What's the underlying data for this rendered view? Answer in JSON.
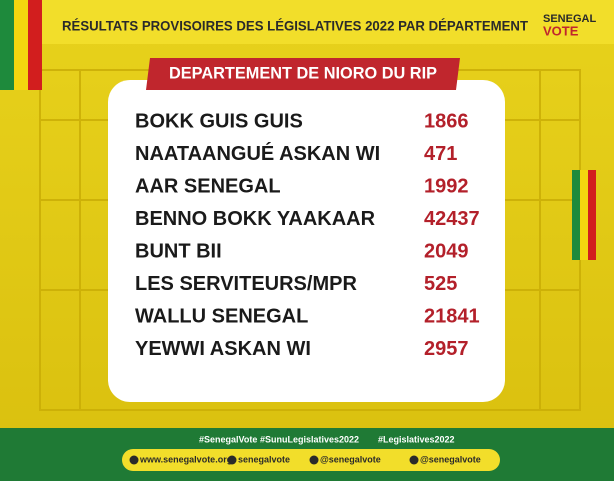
{
  "header": {
    "title": "RÉSULTATS PROVISOIRES DES LÉGISLATIVES 2022 PAR DÉPARTEMENT",
    "logo": [
      "SENEGAL",
      "VOTE"
    ]
  },
  "banner": "DEPARTEMENT DE NIORO DU RIP",
  "table": {
    "rows": [
      [
        "BOKK GUIS GUIS",
        1866
      ],
      [
        "NAATAANGUÉ ASKAN WI",
        471
      ],
      [
        "AAR SENEGAL",
        1992
      ],
      [
        "BENNO BOKK YAAKAAR",
        42437
      ],
      [
        "BUNT BII",
        2049
      ],
      [
        "LES SERVITEURS/MPR",
        525
      ],
      [
        "WALLU SENEGAL",
        21841
      ],
      [
        "YEWWI ASKAN WI",
        2957
      ]
    ]
  },
  "footer": {
    "hashtags": [
      "#SenegalVote",
      "#SunuLegislatives2022",
      "#Legislatives2022"
    ],
    "contacts": [
      "www.senegalvote.org",
      "senegalvote",
      "@senegalvote",
      "@senegalvote"
    ]
  }
}
